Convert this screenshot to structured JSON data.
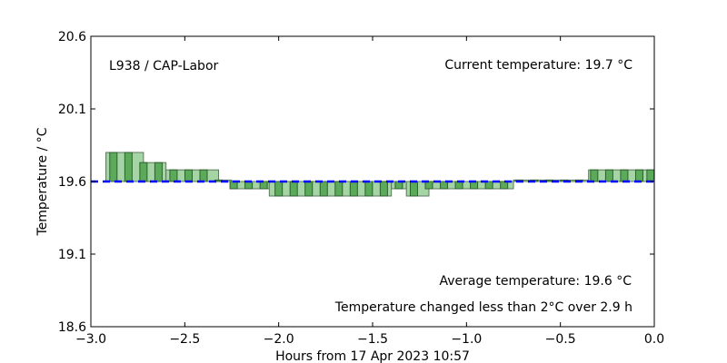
{
  "chart_data": {
    "type": "bar",
    "location": "L938 / CAP-Labor",
    "current_temperature_text": "Current temperature: 19.7 °C",
    "average_text": "Average temperature: 19.6 °C",
    "change_text": "Temperature changed less than 2°C over 2.9 h",
    "xlabel": "Hours from 17 Apr 2023 10:57",
    "ylabel": "Temperature / °C",
    "xlim": [
      -3.0,
      0.0
    ],
    "ylim": [
      18.6,
      20.6
    ],
    "xticks": [
      -3.0,
      -2.5,
      -2.0,
      -1.5,
      -1.0,
      -0.5,
      0.0
    ],
    "xtick_labels": [
      "−3.0",
      "−2.5",
      "−2.0",
      "−1.5",
      "−1.0",
      "−0.5",
      "0.0"
    ],
    "yticks": [
      18.6,
      19.1,
      19.6,
      20.1,
      20.6
    ],
    "ytick_labels": [
      "18.6",
      "19.1",
      "19.6",
      "20.1",
      "20.6"
    ],
    "average": 19.6,
    "colors": {
      "wide_bar": "#a5d4a5",
      "narrow_bar": "#5aaa5a",
      "average_line": "#0000ff",
      "change_text": "#228b22",
      "average_text": "#0000ff"
    },
    "wide_bars": [
      {
        "x0": -2.92,
        "x1": -2.72,
        "y": 19.8
      },
      {
        "x0": -2.72,
        "x1": -2.6,
        "y": 19.73
      },
      {
        "x0": -2.6,
        "x1": -2.32,
        "y": 19.68
      },
      {
        "x0": -2.32,
        "x1": -2.25,
        "y": 19.61
      },
      {
        "x0": -2.25,
        "x1": -2.05,
        "y": 19.55
      },
      {
        "x0": -2.05,
        "x1": -1.4,
        "y": 19.5
      },
      {
        "x0": -1.4,
        "x1": -1.32,
        "y": 19.55
      },
      {
        "x0": -1.32,
        "x1": -1.2,
        "y": 19.5
      },
      {
        "x0": -1.2,
        "x1": -0.75,
        "y": 19.55
      },
      {
        "x0": -0.75,
        "x1": -0.35,
        "y": 19.61
      },
      {
        "x0": -0.35,
        "x1": 0.0,
        "y": 19.68
      }
    ],
    "narrow_bars": [
      {
        "x": -2.88,
        "y": 19.8
      },
      {
        "x": -2.8,
        "y": 19.8
      },
      {
        "x": -2.72,
        "y": 19.73
      },
      {
        "x": -2.64,
        "y": 19.73
      },
      {
        "x": -2.56,
        "y": 19.68
      },
      {
        "x": -2.48,
        "y": 19.68
      },
      {
        "x": -2.4,
        "y": 19.68
      },
      {
        "x": -2.32,
        "y": 19.61
      },
      {
        "x": -2.24,
        "y": 19.55
      },
      {
        "x": -2.16,
        "y": 19.55
      },
      {
        "x": -2.08,
        "y": 19.55
      },
      {
        "x": -2.0,
        "y": 19.5
      },
      {
        "x": -1.92,
        "y": 19.5
      },
      {
        "x": -1.84,
        "y": 19.5
      },
      {
        "x": -1.76,
        "y": 19.5
      },
      {
        "x": -1.68,
        "y": 19.5
      },
      {
        "x": -1.6,
        "y": 19.5
      },
      {
        "x": -1.52,
        "y": 19.5
      },
      {
        "x": -1.44,
        "y": 19.5
      },
      {
        "x": -1.36,
        "y": 19.55
      },
      {
        "x": -1.28,
        "y": 19.5
      },
      {
        "x": -1.2,
        "y": 19.55
      },
      {
        "x": -1.12,
        "y": 19.55
      },
      {
        "x": -1.04,
        "y": 19.55
      },
      {
        "x": -0.96,
        "y": 19.55
      },
      {
        "x": -0.88,
        "y": 19.55
      },
      {
        "x": -0.8,
        "y": 19.55
      },
      {
        "x": -0.72,
        "y": 19.61
      },
      {
        "x": -0.64,
        "y": 19.61
      },
      {
        "x": -0.56,
        "y": 19.61
      },
      {
        "x": -0.48,
        "y": 19.61
      },
      {
        "x": -0.4,
        "y": 19.61
      },
      {
        "x": -0.32,
        "y": 19.68
      },
      {
        "x": -0.24,
        "y": 19.68
      },
      {
        "x": -0.16,
        "y": 19.68
      },
      {
        "x": -0.08,
        "y": 19.68
      },
      {
        "x": -0.02,
        "y": 19.68
      }
    ]
  }
}
